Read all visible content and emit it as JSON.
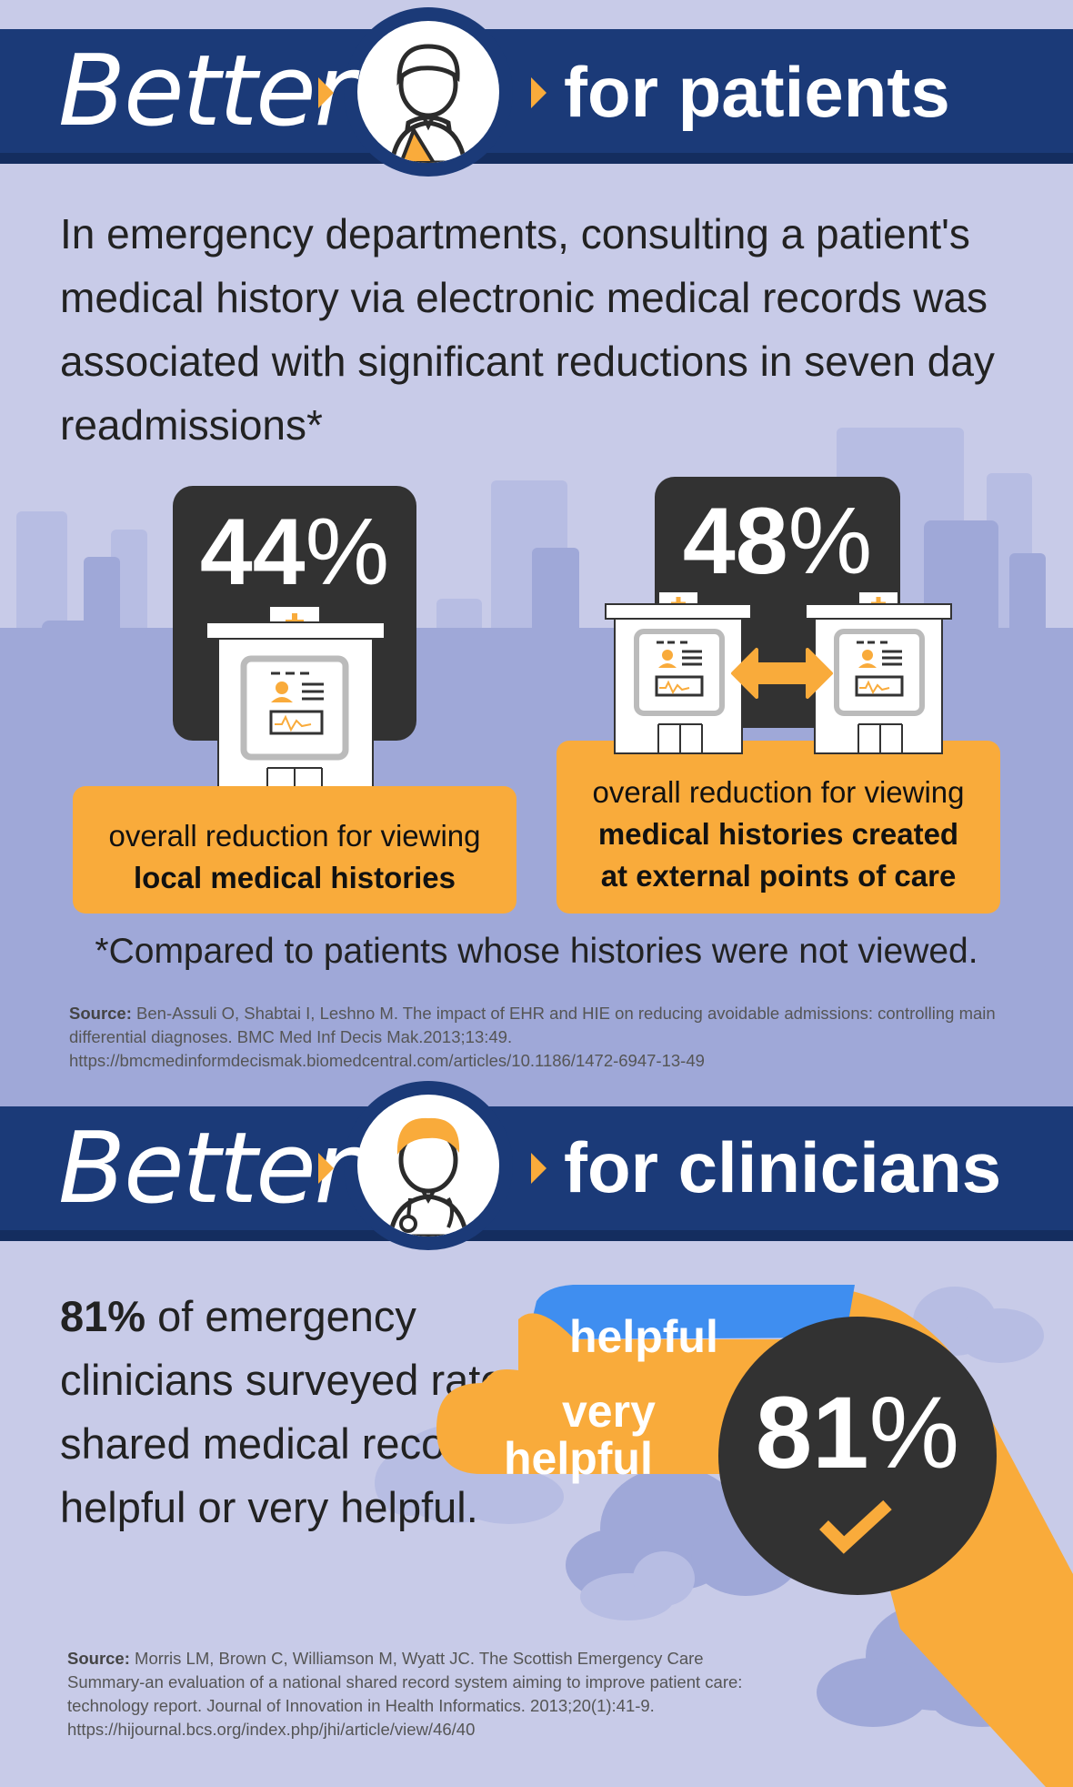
{
  "colors": {
    "navy": "#1b3a78",
    "orange": "#f9ab3b",
    "background": "#c8cbe8",
    "dark": "#323232",
    "blue": "#3f8ef0"
  },
  "patients": {
    "better": "Better",
    "heading": "for patients",
    "icon": "patient-icon",
    "intro": "In emergency departments, consulting a patient's medical history via electronic medical records was associated with significant reductions in seven day readmissions*",
    "stat1": {
      "value": "44",
      "symbol": "%",
      "text_plain": "overall reduction for viewing",
      "text_bold": "local medical histories"
    },
    "stat2": {
      "value": "48",
      "symbol": "%",
      "text_plain": "overall reduction for viewing",
      "text_bold_line1": "medical histories created",
      "text_bold_line2": "at external points of care"
    },
    "footnote": "*Compared to patients whose histories were not viewed.",
    "source_label": "Source:",
    "source_text": " Ben-Assuli O, Shabtai I, Leshno M. The impact of EHR and HIE on reducing avoidable admissions: controlling main differential diagnoses. BMC Med Inf Decis Mak.2013;13:49.",
    "source_url": "https://bmcmedinformdecismak.biomedcentral.com/articles/10.1186/1472-6947-13-49"
  },
  "clinicians": {
    "better": "Better",
    "heading": "for clinicians",
    "icon": "clinician-icon",
    "stat_bold": "81%",
    "stat_text": " of emergency clinicians surveyed rated shared medical records as helpful or very helpful.",
    "pct_value": "81",
    "pct_symbol": "%",
    "label_helpful": "helpful",
    "label_very": "very",
    "label_very_helpful": "helpful",
    "gauge": {
      "helpful_fraction": 0.81
    },
    "source_label": "Source:",
    "source_text": " Morris LM, Brown C, Williamson M, Wyatt JC. The Scottish Emergency Care Summary-an evaluation of a national shared record system aiming to improve patient care: technology report. Journal of Innovation in Health Informatics. 2013;20(1):41-9. https://hijournal.bcs.org/index.php/jhi/article/view/46/40"
  }
}
